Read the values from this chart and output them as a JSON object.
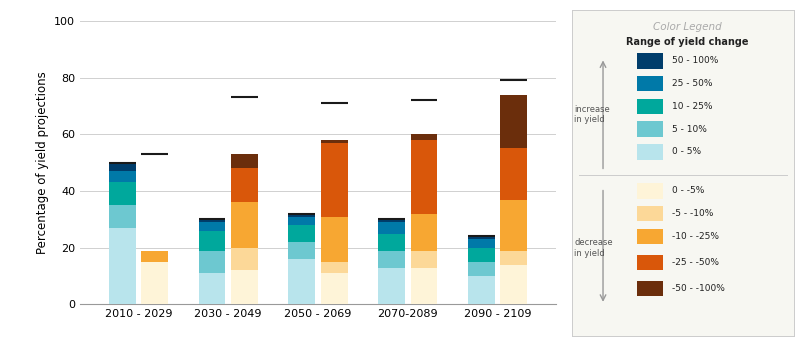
{
  "periods": [
    "2010 - 2029",
    "2030 - 2049",
    "2050 - 2069",
    "2070-2089",
    "2090 - 2109"
  ],
  "increase_colors": [
    "#b8e4ec",
    "#6dc8d0",
    "#00a89c",
    "#0079a8",
    "#003d6b"
  ],
  "increase_labels": [
    "0 - 5%",
    "5 - 10%",
    "10 - 25%",
    "25 - 50%",
    "50 - 100%"
  ],
  "decrease_colors": [
    "#fef4d8",
    "#fcd898",
    "#f7a732",
    "#d9570a",
    "#6b2e0c"
  ],
  "decrease_labels": [
    "0 - -5%",
    "-5 - -10%",
    "-10 - -25%",
    "-25 - -50%",
    "-50 - -100%"
  ],
  "increase_data": [
    [
      27,
      8,
      8,
      4,
      3
    ],
    [
      11,
      8,
      7,
      3,
      1
    ],
    [
      16,
      6,
      6,
      3,
      1
    ],
    [
      13,
      6,
      6,
      4,
      1
    ],
    [
      10,
      5,
      5,
      3,
      1
    ]
  ],
  "decrease_data": [
    [
      15,
      0,
      4,
      0,
      0
    ],
    [
      12,
      8,
      16,
      12,
      5
    ],
    [
      11,
      4,
      16,
      26,
      1
    ],
    [
      13,
      6,
      13,
      26,
      2
    ],
    [
      14,
      5,
      18,
      18,
      19
    ]
  ],
  "increase_top_caps": [
    50,
    30,
    32,
    30,
    24
  ],
  "decrease_top_caps": [
    53,
    73,
    71,
    72,
    79
  ],
  "ylabel": "Percentage of yield projections",
  "ylim": [
    0,
    100
  ],
  "background_color": "#ffffff",
  "grid_color": "#d0d0d0"
}
